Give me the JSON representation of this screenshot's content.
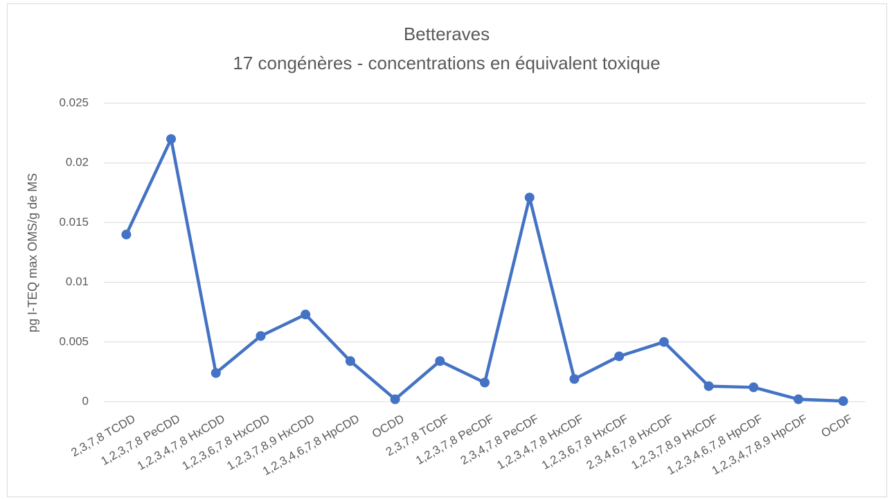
{
  "chart_data": {
    "type": "line",
    "title": "Betteraves",
    "subtitle": "17 congénères - concentrations en équivalent toxique",
    "y_label": "pg I-TEQ max OMS/g de MS",
    "categories": [
      "2,3,7,8 TCDD",
      "1,2,3,7,8 PeCDD",
      "1,2,3,4,7,8 HxCDD",
      "1,2,3,6,7,8 HxCDD",
      "1,2,3,7,8,9 HxCDD",
      "1,2,3,4,6,7,8 HpCDD",
      "OCDD",
      "2,3,7,8 TCDF",
      "1,2,3,7,8 PeCDF",
      "2,3,4,7,8 PeCDF",
      "1,2,3,4,7,8 HxCDF",
      "1,2,3,6,7,8 HxCDF",
      "2,3,4,6,7,8 HxCDF",
      "1,2,3,7,8,9 HxCDF",
      "1,2,3,4,6,7,8 HpCDF",
      "1,2,3,4,7,8,9 HpCDF",
      "OCDF"
    ],
    "values": [
      0.014,
      0.022,
      0.0024,
      0.0055,
      0.0073,
      0.0034,
      0.0002,
      0.0034,
      0.0016,
      0.0171,
      0.0019,
      0.0038,
      0.005,
      0.0013,
      0.0012,
      0.0002,
      5e-05
    ],
    "color": "#4472c4",
    "ylim": [
      0,
      0.025
    ],
    "yticks": [
      0,
      0.005,
      0.01,
      0.015,
      0.02,
      0.025
    ],
    "grid": true
  }
}
